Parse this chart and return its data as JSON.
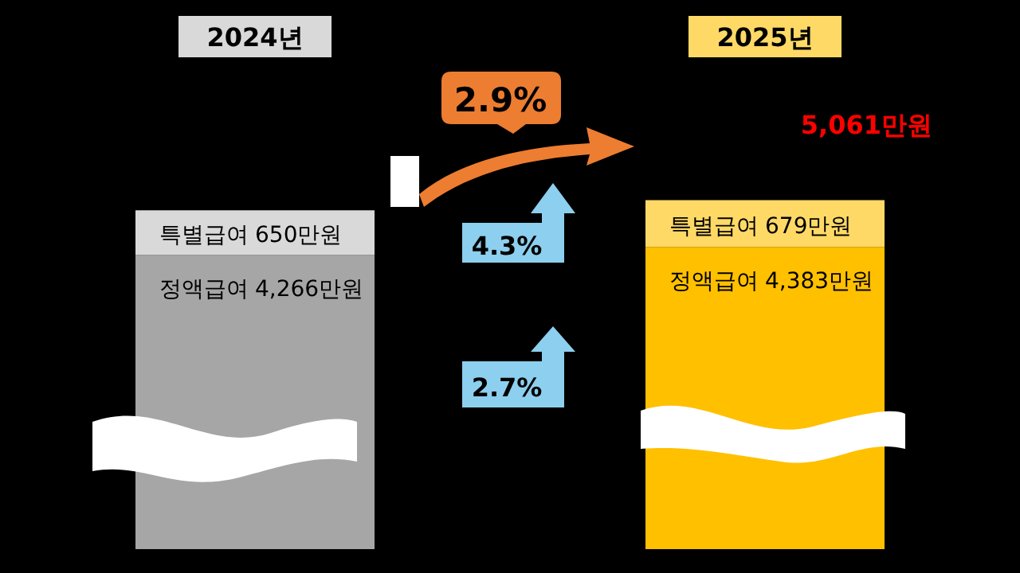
{
  "chart_data": {
    "type": "bar",
    "stacked": true,
    "categories": [
      "2024년",
      "2025년"
    ],
    "tick_labels": "x",
    "legend": false,
    "series": [
      {
        "name": "정액급여",
        "colors": [
          "#a6a6a6",
          "#ffc000"
        ],
        "values": [
          4266,
          4383
        ],
        "value_labels": [
          "4,266만원",
          "4,383만원"
        ]
      },
      {
        "name": "특별급여",
        "colors": [
          "#d9d9d9",
          "#ffd966"
        ],
        "values": [
          650,
          679
        ],
        "value_labels": [
          "650만원",
          "679만원"
        ]
      }
    ],
    "totals": [
      null,
      "5,061만원"
    ],
    "annotations": [
      "2.9%",
      "4.3%",
      "2.7%"
    ]
  }
}
